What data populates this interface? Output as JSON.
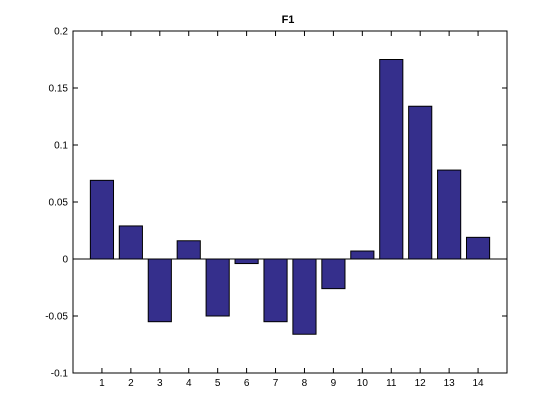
{
  "chart_data": {
    "type": "bar",
    "title": "F1",
    "xlabel": "",
    "ylabel": "",
    "categories": [
      "1",
      "2",
      "3",
      "4",
      "5",
      "6",
      "7",
      "8",
      "9",
      "10",
      "11",
      "12",
      "13",
      "14"
    ],
    "values": [
      0.069,
      0.029,
      -0.055,
      0.016,
      -0.05,
      -0.004,
      -0.055,
      -0.066,
      -0.026,
      0.007,
      0.175,
      0.134,
      0.078,
      0.019
    ],
    "ylim": [
      -0.1,
      0.2
    ],
    "yticks": [
      -0.1,
      -0.05,
      0,
      0.05,
      0.1,
      0.15,
      0.2
    ],
    "ytick_labels": [
      "-0.1",
      "-0.05",
      "0",
      "0.05",
      "0.1",
      "0.15",
      "0.2"
    ],
    "xlim": [
      0,
      15
    ],
    "grid": false,
    "bar_color": "#352f8c",
    "bar_edge_color": "#000000"
  }
}
